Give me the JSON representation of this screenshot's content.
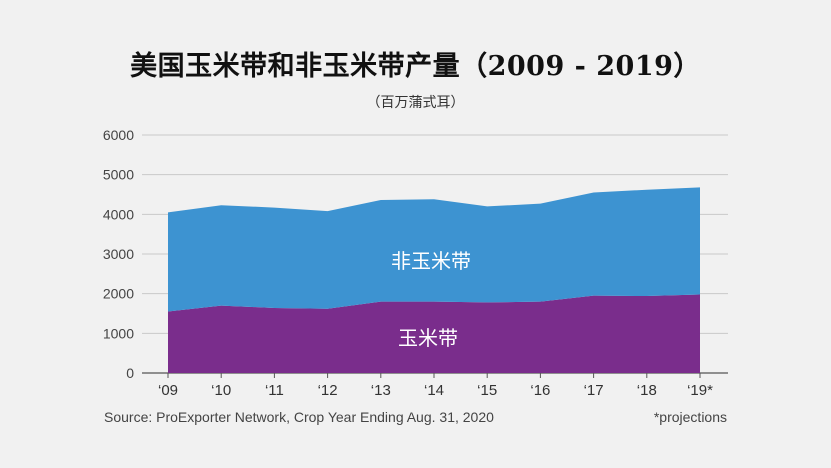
{
  "title": "美国玉米带和非玉米带产量（2009 - 2019）",
  "subtitle": "（百万蒲式耳）",
  "source": "Source: ProExporter Network, Crop Year Ending Aug. 31, 2020",
  "note": "*projections",
  "colors": {
    "corn_belt": "#7a2d8c",
    "non_corn_belt": "#3d93d1",
    "grid": "#c9c9c9",
    "axis": "#555555"
  },
  "chart_data": {
    "type": "area",
    "stacked": true,
    "categories": [
      "‘09",
      "‘10",
      "‘11",
      "‘12",
      "‘13",
      "‘14",
      "‘15",
      "‘16",
      "‘17",
      "‘18",
      "‘19*"
    ],
    "series": [
      {
        "name": "玉米带",
        "values": [
          1550,
          1700,
          1640,
          1620,
          1800,
          1800,
          1780,
          1800,
          1950,
          1940,
          1980
        ]
      },
      {
        "name": "非玉米带",
        "values": [
          2500,
          2530,
          2530,
          2460,
          2560,
          2580,
          2420,
          2470,
          2600,
          2680,
          2700
        ]
      }
    ],
    "ylim": [
      0,
      6000
    ],
    "yticks": [
      0,
      1000,
      2000,
      3000,
      4000,
      5000,
      6000
    ],
    "grid": true
  }
}
